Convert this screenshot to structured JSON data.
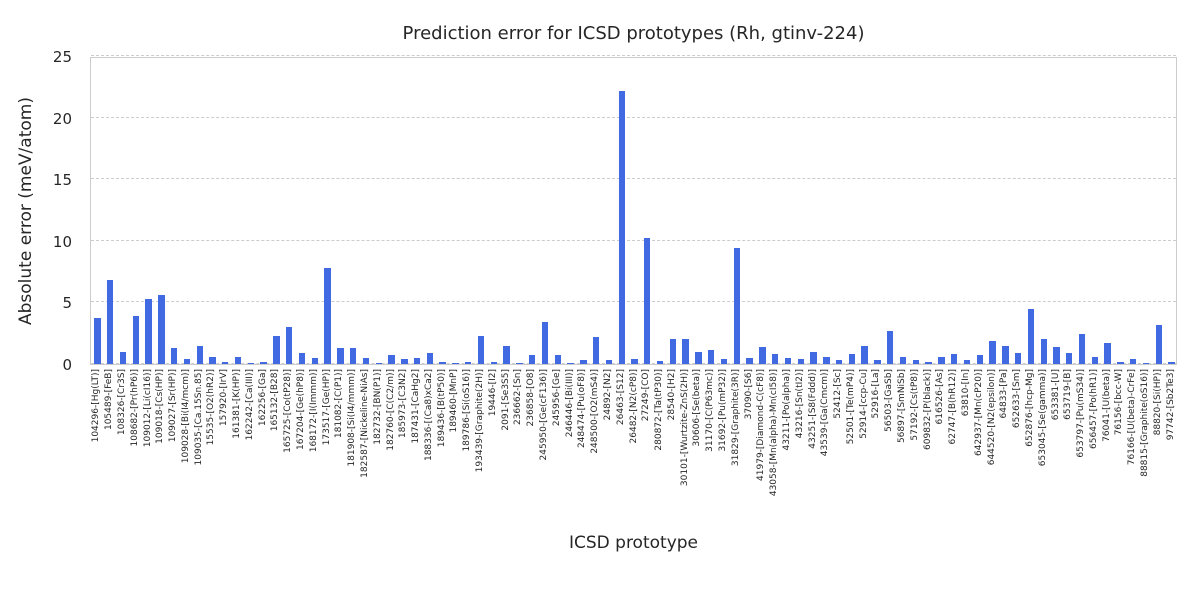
{
  "chart_data": {
    "type": "bar",
    "title": "Prediction error for ICSD prototypes (Rh, gtinv-224)",
    "xlabel": "ICSD prototype",
    "ylabel": "Absolute error (meV/atom)",
    "ylim": [
      0,
      25
    ],
    "yticks": [
      0,
      5,
      10,
      15,
      20,
      25
    ],
    "grid": "horizontal-dashed",
    "legend": "none",
    "bar_color": "#4169E1",
    "grid_color": "#cccccc",
    "text_color": "#262626",
    "categories": [
      "104296-[Hg(LT)]",
      "105489-[FeB]",
      "108326-[Cr3S]",
      "108682-[Pr(hP6)]",
      "109012-[Li(cI16)]",
      "109018-[Cs(HP)]",
      "109027-[Sr(HP)]",
      "109028-[Bi(I4/mcm)]",
      "109035-[Ca.15Sn.85]",
      "15535-[O2(hR2)]",
      "157920-[IrV]",
      "161381-[K(HP)]",
      "162242-[Ca(III)]",
      "162256-[Ga]",
      "165132-[B28]",
      "165725-[Co(tP28)]",
      "167204-[Ge(hP8)]",
      "168172-[I(Immm)]",
      "173517-[Ge(HP)]",
      "181082-[C(P1)]",
      "181908-[Si(I4/mmm)]",
      "182587-[Nickeline-NiAs]",
      "182732-[BN(P1)]",
      "182760-[C(C2/m)]",
      "185973-[C3N2]",
      "187431-[CaHg2]",
      "188336-[(Ca8)xCa2]",
      "189436-[B(tP50)]",
      "189460-[MnP]",
      "189786-[Si(oS16)]",
      "193439-[Graphite(2H)]",
      "19446-[I2]",
      "2091-[Se3S5]",
      "236662-[Sn]",
      "236858-[O8]",
      "245950-[Ge(cF136)]",
      "245956-[Ge]",
      "246446-[Bi(III)]",
      "248474-[Pu(oF8)]",
      "248500-[O2(mS4)]",
      "24892-[N2]",
      "26463-[S12]",
      "26482-[N2(cP8)]",
      "27249-[CO]",
      "280872-[Ta(tP30)]",
      "28540-[H2]",
      "30101-[Wurtzite-ZnS(2H)]",
      "30606-[Se(beta)]",
      "31170-[C(P63mc)]",
      "31692-[Pu(mP32)]",
      "31829-[Graphite(3R)]",
      "37090-[S6]",
      "41979-[Diamond-C(cF8)]",
      "43058-[Mn(alpha)-Mn(cI58)]",
      "43211-[Po(alpha)]",
      "43216-[Sn(tI2)]",
      "43251-[S8(Fddd)]",
      "43539-[Ga(Cmcm)]",
      "52412-[Sc]",
      "52501-[Te(mP4)]",
      "52914-[ccp-Cu]",
      "52916-[La]",
      "56503-[GaSb]",
      "56897-[SmNiSb]",
      "57192-[Cs(tP8)]",
      "609832-[P(black)]",
      "616526-[As]",
      "62747-[B(hR12)]",
      "63810-[In]",
      "642937-[Mn(cP20)]",
      "644520-[N2(epsilon)]",
      "64833-[Pa]",
      "652633-[Sm]",
      "652876-[hcp-Mg]",
      "653045-[Se(gamma)]",
      "653381-[U]",
      "653719-[B]",
      "653797-[Pu(mS34)]",
      "656457-[Po(hR1)]",
      "76041-[U(beta)]",
      "76156-[bcc-W]",
      "76166-[U(beta)-CrFe]",
      "88815-[Graphite(oS16)]",
      "88820-[Si(HP)]",
      "97742-[Sb2Te3]"
    ],
    "values": [
      3.7,
      6.8,
      1.0,
      3.9,
      5.3,
      5.6,
      1.3,
      0.4,
      1.5,
      0.6,
      0.15,
      0.6,
      0.1,
      0.15,
      2.3,
      3.0,
      0.9,
      0.5,
      7.8,
      1.3,
      1.3,
      0.5,
      0.1,
      0.7,
      0.4,
      0.45,
      0.9,
      0.15,
      0.1,
      0.15,
      2.3,
      0.2,
      1.5,
      0.1,
      0.7,
      3.4,
      0.7,
      0.1,
      0.3,
      2.2,
      0.3,
      22.2,
      0.4,
      10.2,
      0.25,
      2.0,
      2.0,
      1.0,
      1.1,
      0.4,
      9.4,
      0.5,
      1.4,
      0.8,
      0.5,
      0.4,
      1.0,
      0.6,
      0.3,
      0.8,
      1.5,
      0.3,
      2.7,
      0.6,
      0.3,
      0.2,
      0.6,
      0.8,
      0.3,
      0.7,
      1.9,
      1.5,
      0.9,
      4.5,
      2.0,
      1.4,
      0.9,
      2.4,
      0.6,
      1.7,
      0.15,
      0.4,
      0.1,
      3.2,
      0.15
    ]
  }
}
